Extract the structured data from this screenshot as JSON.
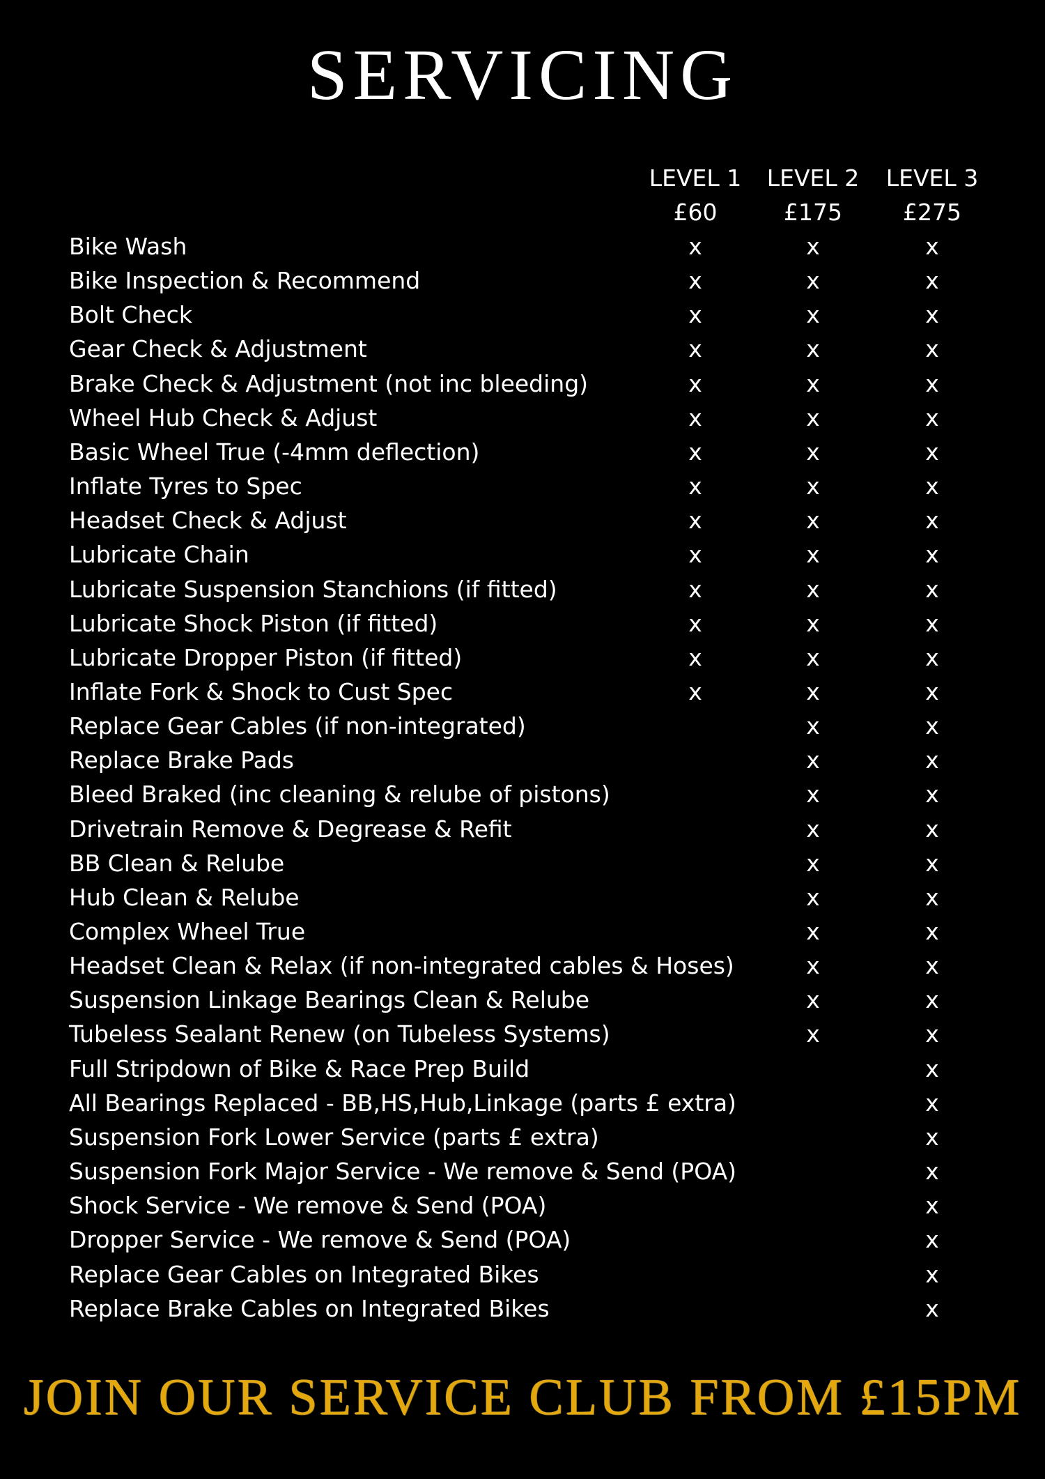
{
  "title": "SERVICING",
  "levels": [
    {
      "name": "LEVEL 1",
      "price": "£60"
    },
    {
      "name": "LEVEL 2",
      "price": "£175"
    },
    {
      "name": "LEVEL 3",
      "price": "£275"
    }
  ],
  "items": [
    {
      "label": "Bike Wash",
      "marks": [
        "x",
        "x",
        "x"
      ]
    },
    {
      "label": "Bike Inspection & Recommend",
      "marks": [
        "x",
        "x",
        "x"
      ]
    },
    {
      "label": "Bolt Check",
      "marks": [
        "x",
        "x",
        "x"
      ]
    },
    {
      "label": "Gear Check & Adjustment",
      "marks": [
        "x",
        "x",
        "x"
      ]
    },
    {
      "label": "Brake Check & Adjustment (not inc bleeding)",
      "marks": [
        "x",
        "x",
        "x"
      ]
    },
    {
      "label": "Wheel Hub Check & Adjust",
      "marks": [
        "x",
        "x",
        "x"
      ]
    },
    {
      "label": "Basic Wheel True (-4mm deflection)",
      "marks": [
        "x",
        "x",
        "x"
      ]
    },
    {
      "label": "Inflate Tyres to Spec",
      "marks": [
        "x",
        "x",
        "x"
      ]
    },
    {
      "label": "Headset Check & Adjust",
      "marks": [
        "x",
        "x",
        "x"
      ]
    },
    {
      "label": "Lubricate Chain",
      "marks": [
        "x",
        "x",
        "x"
      ]
    },
    {
      "label": "Lubricate Suspension Stanchions (if fitted)",
      "marks": [
        "x",
        "x",
        "x"
      ]
    },
    {
      "label": "Lubricate Shock Piston (if fitted)",
      "marks": [
        "x",
        "x",
        "x"
      ]
    },
    {
      "label": "Lubricate Dropper Piston (if fitted)",
      "marks": [
        "x",
        "x",
        "x"
      ]
    },
    {
      "label": "Inflate Fork & Shock to Cust Spec",
      "marks": [
        "x",
        "x",
        "x"
      ]
    },
    {
      "label": "Replace Gear Cables (if non-integrated)",
      "marks": [
        "",
        "x",
        "x"
      ]
    },
    {
      "label": "Replace Brake Pads",
      "marks": [
        "",
        "x",
        "x"
      ]
    },
    {
      "label": "Bleed Braked (inc cleaning & relube of pistons)",
      "marks": [
        "",
        "x",
        "x"
      ]
    },
    {
      "label": "Drivetrain Remove & Degrease & Refit",
      "marks": [
        "",
        "x",
        "x"
      ]
    },
    {
      "label": "BB Clean & Relube",
      "marks": [
        "",
        "x",
        "x"
      ]
    },
    {
      "label": "Hub Clean & Relube",
      "marks": [
        "",
        "x",
        "x"
      ]
    },
    {
      "label": "Complex Wheel True",
      "marks": [
        "",
        "x",
        "x"
      ]
    },
    {
      "label": "Headset Clean & Relax (if non-integrated cables & Hoses)",
      "marks": [
        "",
        "x",
        "x"
      ]
    },
    {
      "label": "Suspension Linkage Bearings Clean & Relube",
      "marks": [
        "",
        "x",
        "x"
      ]
    },
    {
      "label": "Tubeless Sealant Renew (on Tubeless Systems)",
      "marks": [
        "",
        "x",
        "x"
      ]
    },
    {
      "label": "Full Stripdown of Bike & Race Prep Build",
      "marks": [
        "",
        "",
        "x"
      ]
    },
    {
      "label": "All Bearings Replaced - BB,HS,Hub,Linkage (parts £ extra)",
      "marks": [
        "",
        "",
        "x"
      ]
    },
    {
      "label": "Suspension Fork Lower Service (parts £ extra)",
      "marks": [
        "",
        "",
        "x"
      ]
    },
    {
      "label": "Suspension Fork Major Service - We remove & Send (POA)",
      "marks": [
        "",
        "",
        "x"
      ]
    },
    {
      "label": "Shock Service - We remove & Send (POA)",
      "marks": [
        "",
        "",
        "x"
      ]
    },
    {
      "label": "Dropper Service - We remove & Send (POA)",
      "marks": [
        "",
        "",
        "x"
      ]
    },
    {
      "label": "Replace Gear Cables on Integrated Bikes",
      "marks": [
        "",
        "",
        "x"
      ]
    },
    {
      "label": "Replace Brake Cables on Integrated Bikes",
      "marks": [
        "",
        "",
        "x"
      ]
    }
  ],
  "footer": {
    "text": "JOIN OUR SERVICE CLUB FROM £15PM",
    "color": "#e5a80c"
  }
}
